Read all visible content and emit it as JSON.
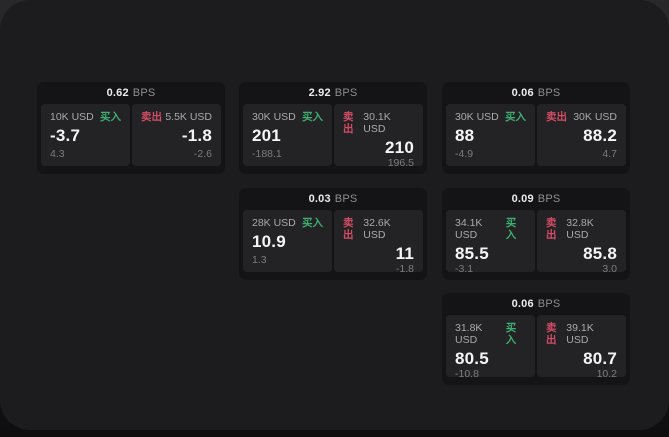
{
  "labels": {
    "bps": "BPS",
    "buy": "买入",
    "sell": "卖出"
  },
  "colors": {
    "buy": "#3EAE6F",
    "sell": "#D34C64",
    "card_bg": "#141416",
    "panel_bg": "#232326",
    "window_bg": "#1C1C1E"
  },
  "cards": [
    {
      "bps": "0.62",
      "buy": {
        "amount": "10K USD",
        "price": "-3.7",
        "delta": "4.3"
      },
      "sell": {
        "amount": "5.5K USD",
        "price": "-1.8",
        "delta": "-2.6"
      }
    },
    {
      "bps": "2.92",
      "buy": {
        "amount": "30K USD",
        "price": "201",
        "delta": "-188.1"
      },
      "sell": {
        "amount": "30.1K USD",
        "price": "210",
        "delta": "196.5"
      }
    },
    {
      "bps": "0.06",
      "buy": {
        "amount": "30K USD",
        "price": "88",
        "delta": "-4.9"
      },
      "sell": {
        "amount": "30K USD",
        "price": "88.2",
        "delta": "4.7"
      }
    },
    {
      "bps": "0.03",
      "buy": {
        "amount": "28K USD",
        "price": "10.9",
        "delta": "1.3"
      },
      "sell": {
        "amount": "32.6K USD",
        "price": "11",
        "delta": "-1.8"
      }
    },
    {
      "bps": "0.09",
      "buy": {
        "amount": "34.1K USD",
        "price": "85.5",
        "delta": "-3.1"
      },
      "sell": {
        "amount": "32.8K USD",
        "price": "85.8",
        "delta": "3.0"
      }
    },
    {
      "bps": "0.06",
      "buy": {
        "amount": "31.8K USD",
        "price": "80.5",
        "delta": "-10.8"
      },
      "sell": {
        "amount": "39.1K USD",
        "price": "80.7",
        "delta": "10.2"
      }
    }
  ]
}
